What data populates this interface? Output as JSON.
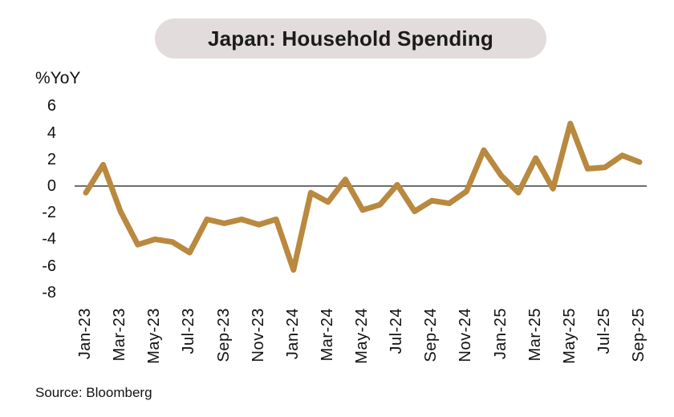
{
  "chart": {
    "title": "Japan: Household Spending",
    "y_unit_label": "%YoY",
    "source": "Source: Bloomberg",
    "title_pill_bg": "#E3DCDC",
    "title_text_color": "#1b1b1b"
  },
  "chart_data": {
    "type": "line",
    "title": "Japan: Household Spending",
    "ylabel": "%YoY",
    "source": "Source: Bloomberg",
    "x": [
      "Jan-23",
      "Feb-23",
      "Mar-23",
      "Apr-23",
      "May-23",
      "Jun-23",
      "Jul-23",
      "Aug-23",
      "Sep-23",
      "Oct-23",
      "Nov-23",
      "Dec-23",
      "Jan-24",
      "Feb-24",
      "Mar-24",
      "Apr-24",
      "May-24",
      "Jun-24",
      "Jul-24",
      "Aug-24",
      "Sep-24",
      "Oct-24",
      "Nov-24",
      "Dec-24",
      "Jan-25",
      "Feb-25",
      "Mar-25",
      "Apr-25",
      "May-25",
      "Jun-25",
      "Jul-25",
      "Aug-25",
      "Sep-25"
    ],
    "values": [
      -0.5,
      1.6,
      -1.9,
      -4.4,
      -4.0,
      -4.2,
      -5.0,
      -2.5,
      -2.8,
      -2.5,
      -2.9,
      -2.5,
      -6.3,
      -0.5,
      -1.2,
      0.5,
      -1.8,
      -1.4,
      0.1,
      -1.9,
      -1.1,
      -1.3,
      -0.4,
      2.7,
      0.8,
      -0.5,
      2.1,
      -0.2,
      4.7,
      1.3,
      1.4,
      2.3,
      1.8
    ],
    "x_tick_every": 2,
    "y_ticks": [
      6,
      4,
      2,
      0,
      -2,
      -4,
      -6,
      -8
    ],
    "ylim": [
      -8,
      6
    ],
    "grid": false,
    "legend": "none",
    "zero_baseline": true,
    "line_color": "#B9893F",
    "line_width": 7,
    "zero_line_color": "#3f3f3f"
  }
}
